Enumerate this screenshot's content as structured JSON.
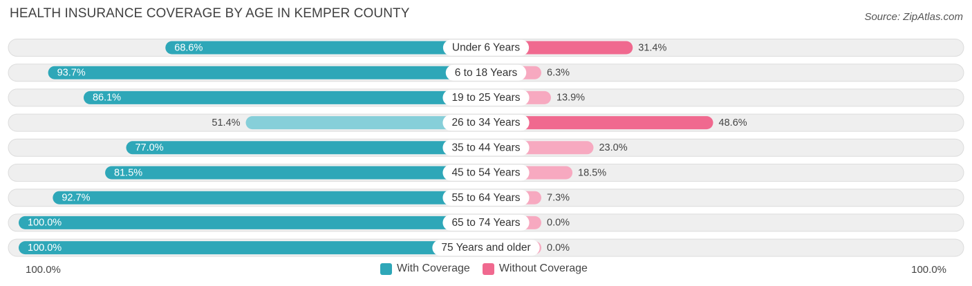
{
  "header": {
    "title": "HEALTH INSURANCE COVERAGE BY AGE IN KEMPER COUNTY",
    "source": "Source: ZipAtlas.com"
  },
  "axis": {
    "left_label": "100.0%",
    "right_label": "100.0%"
  },
  "legend": {
    "with_label": "With Coverage",
    "without_label": "Without Coverage"
  },
  "colors": {
    "with_strong": "#2ea7b8",
    "with_light": "#86cfd9",
    "without_strong": "#f0698f",
    "without_light": "#f7a9c0",
    "row_bg": "#efefef",
    "row_border": "#dcdcdc"
  },
  "chart_data": {
    "type": "bar",
    "orientation": "horizontal-diverging",
    "title": "HEALTH INSURANCE COVERAGE BY AGE IN KEMPER COUNTY",
    "xlim": [
      -100,
      100
    ],
    "categories": [
      "Under 6 Years",
      "6 to 18 Years",
      "19 to 25 Years",
      "26 to 34 Years",
      "35 to 44 Years",
      "45 to 54 Years",
      "55 to 64 Years",
      "65 to 74 Years",
      "75 Years and older"
    ],
    "series": [
      {
        "name": "With Coverage",
        "values": [
          68.6,
          93.7,
          86.1,
          51.4,
          77.0,
          81.5,
          92.7,
          100.0,
          100.0
        ],
        "labels": [
          "68.6%",
          "93.7%",
          "86.1%",
          "51.4%",
          "77.0%",
          "81.5%",
          "92.7%",
          "100.0%",
          "100.0%"
        ]
      },
      {
        "name": "Without Coverage",
        "values": [
          31.4,
          6.3,
          13.9,
          48.6,
          23.0,
          18.5,
          7.3,
          0.0,
          0.0
        ],
        "labels": [
          "31.4%",
          "6.3%",
          "13.9%",
          "48.6%",
          "23.0%",
          "18.5%",
          "7.3%",
          "0.0%",
          "0.0%"
        ]
      }
    ]
  }
}
